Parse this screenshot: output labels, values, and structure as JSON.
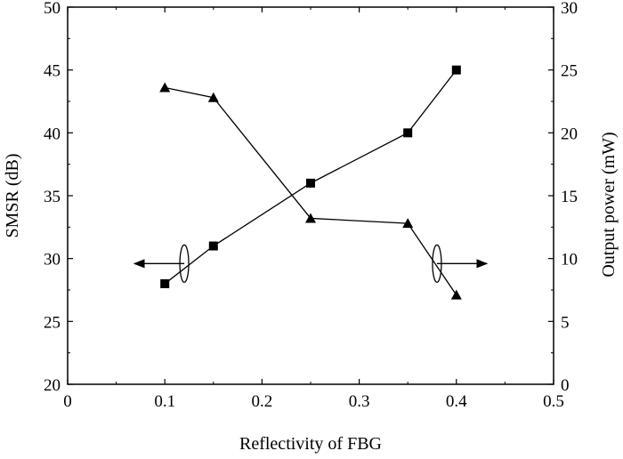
{
  "chart_data": {
    "type": "line",
    "xlabel": "Reflectivity of FBG",
    "ylabel_left": "SMSR (dB)",
    "ylabel_right": "Output power (mW)",
    "xlim": [
      0,
      0.5
    ],
    "ylim_left": [
      20,
      50
    ],
    "ylim_right": [
      0,
      30
    ],
    "x_ticks": [
      "0",
      "0.1",
      "0.2",
      "0.3",
      "0.4",
      "0.5"
    ],
    "y_left_ticks": [
      "20",
      "25",
      "30",
      "35",
      "40",
      "45",
      "50"
    ],
    "y_right_ticks": [
      "0",
      "5",
      "10",
      "15",
      "20",
      "25",
      "30"
    ],
    "grid": false,
    "series": [
      {
        "axis": "left",
        "marker": "square",
        "x": [
          0.1,
          0.15,
          0.25,
          0.35,
          0.4
        ],
        "values": [
          28,
          31,
          36,
          40,
          45
        ]
      },
      {
        "axis": "right",
        "marker": "triangle",
        "x": [
          0.1,
          0.15,
          0.25,
          0.35,
          0.4
        ],
        "values": [
          23.6,
          22.8,
          13.2,
          12.8,
          7.1
        ]
      }
    ],
    "annotations": [
      {
        "text": "",
        "type": "ellipse-arrow",
        "points_to": "left-axis",
        "at_x": 0.12,
        "at_y_left": 29.6
      },
      {
        "text": "",
        "type": "ellipse-arrow",
        "points_to": "right-axis",
        "at_x": 0.38,
        "at_y_right": 9.6
      }
    ]
  }
}
